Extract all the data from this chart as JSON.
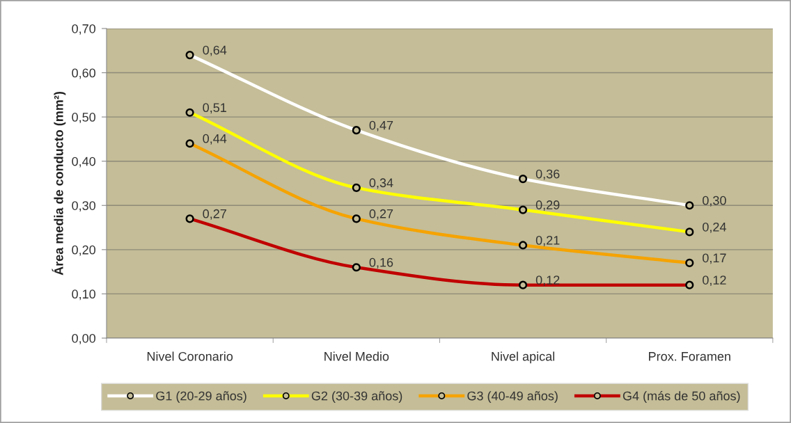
{
  "chart_data": {
    "type": "line",
    "ylabel": "Área media de conducto (mm²)",
    "categories": [
      "Nivel Coronario",
      "Nivel Medio",
      "Nivel apical",
      "Prox. Foramen"
    ],
    "series": [
      {
        "name": "G1 (20-29 años)",
        "color": "#ffffff",
        "values": [
          0.64,
          0.47,
          0.36,
          0.3
        ],
        "value_labels": [
          "0,64",
          "0,47",
          "0,36",
          "0,30"
        ]
      },
      {
        "name": "G2 (30-39 años)",
        "color": "#ffff00",
        "values": [
          0.51,
          0.34,
          0.29,
          0.24
        ],
        "value_labels": [
          "0,51",
          "0,34",
          "0,29",
          "0,24"
        ]
      },
      {
        "name": "G3 (40-49 años)",
        "color": "#f5a300",
        "values": [
          0.44,
          0.27,
          0.21,
          0.17
        ],
        "value_labels": [
          "0,44",
          "0,27",
          "0,21",
          "0,17"
        ]
      },
      {
        "name": "G4 (más de 50 años)",
        "color": "#c00000",
        "values": [
          0.27,
          0.16,
          0.12,
          0.12
        ],
        "value_labels": [
          "0,27",
          "0,16",
          "0,12",
          "0,12"
        ]
      }
    ],
    "ylim": [
      0,
      0.7
    ],
    "yticks": [
      {
        "value": 0,
        "label": "0,00"
      },
      {
        "value": 0.1,
        "label": "0,10"
      },
      {
        "value": 0.2,
        "label": "0,20"
      },
      {
        "value": 0.3,
        "label": "0,30"
      },
      {
        "value": 0.4,
        "label": "0,40"
      },
      {
        "value": 0.5,
        "label": "0,50"
      },
      {
        "value": 0.6,
        "label": "0,60"
      },
      {
        "value": 0.7,
        "label": "0,70"
      }
    ],
    "grid": "y",
    "legend": "bottom",
    "marker": "circle",
    "line_style": "solid"
  }
}
